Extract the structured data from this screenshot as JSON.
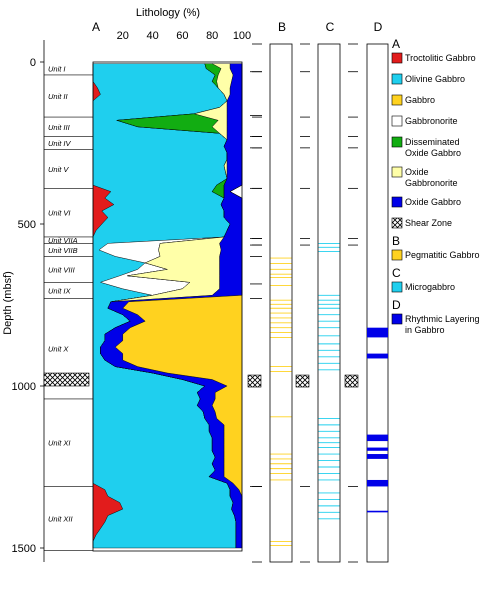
{
  "chart_data": {
    "type": "area",
    "orientation": "vertical-depth",
    "title": "Lithology (%)",
    "xlabel": "Lithology (%)",
    "ylabel": "Depth (mbsf)",
    "xlim": [
      0,
      100
    ],
    "ylim": [
      0,
      1500
    ],
    "x_ticks": [
      "20",
      "40",
      "60",
      "80",
      "100"
    ],
    "y_ticks": [
      "0",
      "500",
      "1000",
      "1500"
    ],
    "panel_labels": [
      "A",
      "B",
      "C",
      "D"
    ],
    "units": [
      {
        "name": "Unit I",
        "top": 0,
        "bottom": 40
      },
      {
        "name": "Unit II",
        "top": 40,
        "bottom": 170
      },
      {
        "name": "Unit III",
        "top": 170,
        "bottom": 230
      },
      {
        "name": "Unit IV",
        "top": 230,
        "bottom": 270
      },
      {
        "name": "Unit V",
        "top": 270,
        "bottom": 390
      },
      {
        "name": "Unit VI",
        "top": 390,
        "bottom": 540
      },
      {
        "name": "Unit VIIA",
        "top": 540,
        "bottom": 560
      },
      {
        "name": "Unit VIIB",
        "top": 560,
        "bottom": 600
      },
      {
        "name": "Unit VIII",
        "top": 600,
        "bottom": 680
      },
      {
        "name": "Unit IX",
        "top": 680,
        "bottom": 730
      },
      {
        "name": "Unit X",
        "top": 730,
        "bottom": 1040
      },
      {
        "name": "Unit XI",
        "top": 1040,
        "bottom": 1310
      },
      {
        "name": "Unit XII",
        "top": 1310,
        "bottom": 1508
      }
    ],
    "shear_zone": {
      "top": 960,
      "bottom": 1000
    },
    "depth": [
      5,
      20,
      40,
      60,
      80,
      100,
      120,
      140,
      160,
      180,
      200,
      220,
      240,
      260,
      280,
      300,
      320,
      340,
      360,
      380,
      400,
      420,
      440,
      460,
      480,
      500,
      520,
      540,
      560,
      580,
      600,
      620,
      640,
      660,
      680,
      700,
      720,
      740,
      760,
      780,
      800,
      820,
      840,
      860,
      880,
      900,
      920,
      940,
      960,
      980,
      1000,
      1020,
      1040,
      1060,
      1080,
      1100,
      1120,
      1140,
      1160,
      1180,
      1200,
      1220,
      1240,
      1260,
      1280,
      1300,
      1320,
      1340,
      1360,
      1380,
      1400,
      1420,
      1440,
      1460,
      1480,
      1500
    ],
    "series": [
      {
        "name": "Troctolitic Gabbro",
        "color": "#e21c1c",
        "values": [
          0,
          0,
          0,
          0,
          3,
          5,
          0,
          0,
          0,
          0,
          0,
          0,
          0,
          0,
          0,
          0,
          0,
          0,
          0,
          0,
          12,
          8,
          14,
          6,
          10,
          6,
          2,
          0,
          0,
          0,
          0,
          0,
          0,
          0,
          0,
          0,
          0,
          0,
          0,
          0,
          0,
          0,
          0,
          0,
          0,
          0,
          0,
          0,
          0,
          0,
          0,
          0,
          0,
          0,
          0,
          0,
          0,
          0,
          0,
          0,
          0,
          0,
          0,
          0,
          0,
          0,
          8,
          10,
          18,
          20,
          10,
          8,
          5,
          2,
          0,
          0
        ]
      },
      {
        "name": "Olivine Gabbro",
        "color": "#1fcfee",
        "values": [
          75,
          76,
          82,
          80,
          81,
          83,
          90,
          85,
          68,
          16,
          30,
          85,
          90,
          88,
          90,
          90,
          88,
          89,
          90,
          83,
          68,
          80,
          72,
          82,
          78,
          86,
          88,
          88,
          10,
          4,
          15,
          35,
          30,
          18,
          5,
          20,
          40,
          12,
          10,
          20,
          25,
          15,
          8,
          8,
          5,
          5,
          8,
          15,
          40,
          60,
          75,
          70,
          72,
          70,
          74,
          75,
          78,
          78,
          80,
          80,
          80,
          82,
          80,
          82,
          78,
          90,
          84,
          82,
          76,
          73,
          85,
          88,
          91,
          94,
          96,
          96
        ]
      },
      {
        "name": "Gabbro",
        "color": "#ffd21f",
        "values": [
          0,
          0,
          0,
          0,
          0,
          0,
          0,
          0,
          0,
          0,
          0,
          0,
          0,
          0,
          0,
          0,
          0,
          0,
          0,
          0,
          0,
          0,
          0,
          0,
          0,
          0,
          0,
          0,
          0,
          0,
          0,
          0,
          0,
          0,
          0,
          0,
          0,
          0,
          0,
          0,
          0,
          0,
          0,
          0,
          0,
          0,
          0,
          0,
          0,
          0,
          0,
          0,
          0,
          0,
          0,
          0,
          0,
          0,
          0,
          0,
          0,
          0,
          0,
          0,
          0,
          0,
          0,
          0,
          0,
          0,
          0,
          0,
          0,
          0,
          0,
          0
        ]
      },
      {
        "name": "Gabbronorite",
        "color": "#ffffff",
        "values": [
          0,
          0,
          0,
          0,
          0,
          0,
          0,
          0,
          0,
          0,
          0,
          0,
          0,
          0,
          0,
          0,
          0,
          0,
          0,
          0,
          0,
          0,
          0,
          0,
          0,
          0,
          0,
          0,
          35,
          40,
          30,
          0,
          20,
          5,
          60,
          40,
          0,
          0,
          0,
          0,
          0,
          0,
          0,
          0,
          0,
          0,
          0,
          0,
          0,
          0,
          0,
          0,
          0,
          0,
          0,
          0,
          0,
          0,
          0,
          0,
          0,
          0,
          0,
          0,
          0,
          0,
          0,
          0,
          0,
          0,
          0,
          0,
          0,
          0,
          0,
          0
        ]
      },
      {
        "name": "Disseminated Oxide Gabbro",
        "color": "#12ad12",
        "values": [
          5,
          10,
          2,
          3,
          0,
          0,
          0,
          0,
          0,
          68,
          50,
          0,
          0,
          0,
          0,
          0,
          0,
          0,
          0,
          5,
          8,
          0,
          0,
          0,
          0,
          0,
          0,
          0,
          0,
          0,
          0,
          0,
          0,
          0,
          0,
          0,
          0,
          0,
          0,
          0,
          0,
          0,
          0,
          0,
          0,
          0,
          0,
          0,
          0,
          0,
          0,
          0,
          0,
          0,
          0,
          0,
          0,
          0,
          0,
          0,
          0,
          0,
          0,
          0,
          0,
          0,
          0,
          0,
          0,
          0,
          0,
          0,
          0,
          0,
          0,
          0
        ]
      },
      {
        "name": "Oxide Gabbronorite",
        "color": "#ffffa8",
        "values": [
          12,
          6,
          10,
          10,
          8,
          4,
          0,
          5,
          22,
          6,
          10,
          5,
          0,
          0,
          0,
          0,
          2,
          1,
          0,
          0,
          0,
          0,
          0,
          0,
          0,
          0,
          0,
          0,
          40,
          42,
          40,
          50,
          35,
          62,
          20,
          25,
          40,
          0,
          0,
          0,
          0,
          0,
          0,
          0,
          0,
          0,
          0,
          0,
          0,
          0,
          0,
          0,
          0,
          0,
          0,
          0,
          0,
          0,
          0,
          0,
          0,
          0,
          0,
          0,
          0,
          0,
          0,
          0,
          0,
          0,
          0,
          0,
          0,
          0,
          0,
          0
        ]
      },
      {
        "name": "Oxide Gabbro",
        "color": "#0000e8",
        "values": [
          8,
          8,
          6,
          7,
          8,
          8,
          10,
          10,
          10,
          10,
          10,
          10,
          10,
          12,
          10,
          10,
          10,
          10,
          10,
          12,
          4,
          12,
          14,
          12,
          12,
          8,
          10,
          12,
          15,
          14,
          15,
          15,
          15,
          15,
          15,
          15,
          20,
          12,
          10,
          10,
          10,
          10,
          12,
          12,
          10,
          15,
          12,
          15,
          10,
          20,
          15,
          12,
          10,
          10,
          8,
          8,
          10,
          10,
          8,
          8,
          8,
          6,
          8,
          6,
          10,
          4,
          6,
          8,
          6,
          7,
          5,
          4,
          4,
          4,
          4,
          4
        ]
      },
      {
        "name": "Pegmatitic Gabbro",
        "color": "#ffd21f",
        "values": [
          0,
          0,
          0,
          0,
          0,
          0,
          0,
          0,
          0,
          0,
          0,
          0,
          0,
          0,
          0,
          0,
          0,
          0,
          0,
          0,
          0,
          0,
          0,
          0,
          0,
          0,
          0,
          0,
          0,
          0,
          0,
          0,
          0,
          0,
          0,
          0,
          0,
          76,
          80,
          70,
          65,
          75,
          80,
          80,
          85,
          80,
          80,
          70,
          50,
          20,
          10,
          18,
          18,
          20,
          18,
          17,
          12,
          12,
          12,
          12,
          12,
          12,
          12,
          12,
          12,
          6,
          2,
          0,
          0,
          0,
          0,
          0,
          0,
          0,
          0,
          0
        ]
      }
    ],
    "column_B_intervals": [
      605,
      622,
      640,
      655,
      665,
      690,
      735,
      748,
      760,
      775,
      790,
      805,
      820,
      835,
      850,
      940,
      955,
      1095,
      1210,
      1225,
      1240,
      1255,
      1270,
      1290,
      1480,
      1492
    ],
    "column_C_intervals": [
      560,
      572,
      585,
      720,
      735,
      748,
      760,
      780,
      800,
      820,
      845,
      870,
      890,
      910,
      930,
      950,
      1100,
      1120,
      1140,
      1160,
      1175,
      1190,
      1210,
      1230,
      1250,
      1270,
      1290,
      1330,
      1350,
      1370,
      1390,
      1410
    ],
    "column_D_bands": [
      [
        820,
        850
      ],
      [
        900,
        915
      ],
      [
        1150,
        1170
      ],
      [
        1190,
        1200
      ],
      [
        1210,
        1225
      ],
      [
        1290,
        1310
      ],
      [
        1385,
        1390
      ]
    ],
    "marker_depths_A": [
      30,
      165,
      230,
      265,
      390,
      545,
      565,
      600,
      685,
      730,
      1310
    ],
    "marker_depths_B": [
      30,
      170,
      230,
      265,
      390,
      545,
      565,
      1310
    ],
    "marker_depths_C": [
      30,
      170,
      230,
      265,
      390,
      545,
      565,
      1310
    ],
    "marker_depths_D": [
      30,
      170,
      230,
      265,
      390,
      545,
      565,
      1310
    ]
  },
  "legend": [
    {
      "group": "A",
      "label": "Troctolitic Gabbro",
      "color": "#e21c1c",
      "kind": "fill"
    },
    {
      "group": "",
      "label": "Olivine Gabbro",
      "color": "#1fcfee",
      "kind": "fill"
    },
    {
      "group": "",
      "label": "Gabbro",
      "color": "#ffd21f",
      "kind": "fill"
    },
    {
      "group": "",
      "label": "Gabbronorite",
      "color": "#ffffff",
      "kind": "fill"
    },
    {
      "group": "",
      "label": "Disseminated",
      "label2": "Oxide Gabbro",
      "color": "#12ad12",
      "kind": "fill"
    },
    {
      "group": "",
      "label": "Oxide",
      "label2": "Gabbronorite",
      "color": "#ffffa8",
      "kind": "fill"
    },
    {
      "group": "",
      "label": "Oxide Gabbro",
      "color": "#0000e8",
      "kind": "fill"
    },
    {
      "group": "",
      "label": "Shear Zone",
      "color": "#ffffff",
      "kind": "hatch"
    },
    {
      "group": "B",
      "label": "Pegmatitic Gabbro",
      "color": "#ffd21f",
      "kind": "fill"
    },
    {
      "group": "C",
      "label": "Microgabbro",
      "color": "#1fcfee",
      "kind": "fill"
    },
    {
      "group": "D",
      "label": "Rhythmic Layering",
      "label2": "in Gabbro",
      "color": "#0000e8",
      "kind": "fill"
    }
  ]
}
